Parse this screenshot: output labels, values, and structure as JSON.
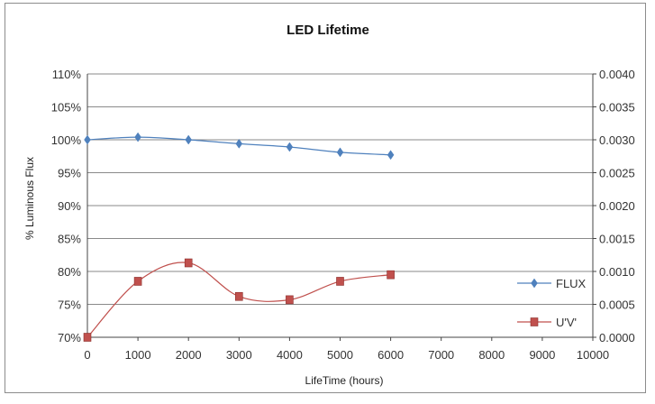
{
  "chart_data": {
    "type": "line",
    "title": "LED Lifetime",
    "xlabel": "LifeTime (hours)",
    "ylabel": "% Luminous Flux",
    "xlim": [
      0,
      10000
    ],
    "x_ticks": [
      0,
      1000,
      2000,
      3000,
      4000,
      5000,
      6000,
      7000,
      8000,
      9000,
      10000
    ],
    "ylim": [
      70,
      110
    ],
    "y_ticks": [
      "70%",
      "75%",
      "80%",
      "85%",
      "90%",
      "95%",
      "100%",
      "105%",
      "110%"
    ],
    "y2lim": [
      0,
      0.004
    ],
    "y2_ticks": [
      "0.0000",
      "0.0005",
      "0.0010",
      "0.0015",
      "0.0020",
      "0.0025",
      "0.0030",
      "0.0035",
      "0.0040"
    ],
    "grid": "horizontal",
    "legend_position": "bottom-right",
    "series": [
      {
        "name": "FLUX",
        "axis": "left",
        "marker": "diamond",
        "color": "#4f81bd",
        "x": [
          0,
          1000,
          2000,
          3000,
          4000,
          5000,
          6000
        ],
        "values": [
          100.0,
          100.4,
          100.0,
          99.4,
          98.9,
          98.1,
          97.7
        ]
      },
      {
        "name": "U'V'",
        "axis": "right",
        "marker": "square",
        "color": "#c0504d",
        "x": [
          0,
          1000,
          2000,
          3000,
          4000,
          5000,
          6000
        ],
        "values": [
          0.0,
          0.00085,
          0.00113,
          0.00062,
          0.00057,
          0.00085,
          0.00095
        ]
      }
    ]
  }
}
